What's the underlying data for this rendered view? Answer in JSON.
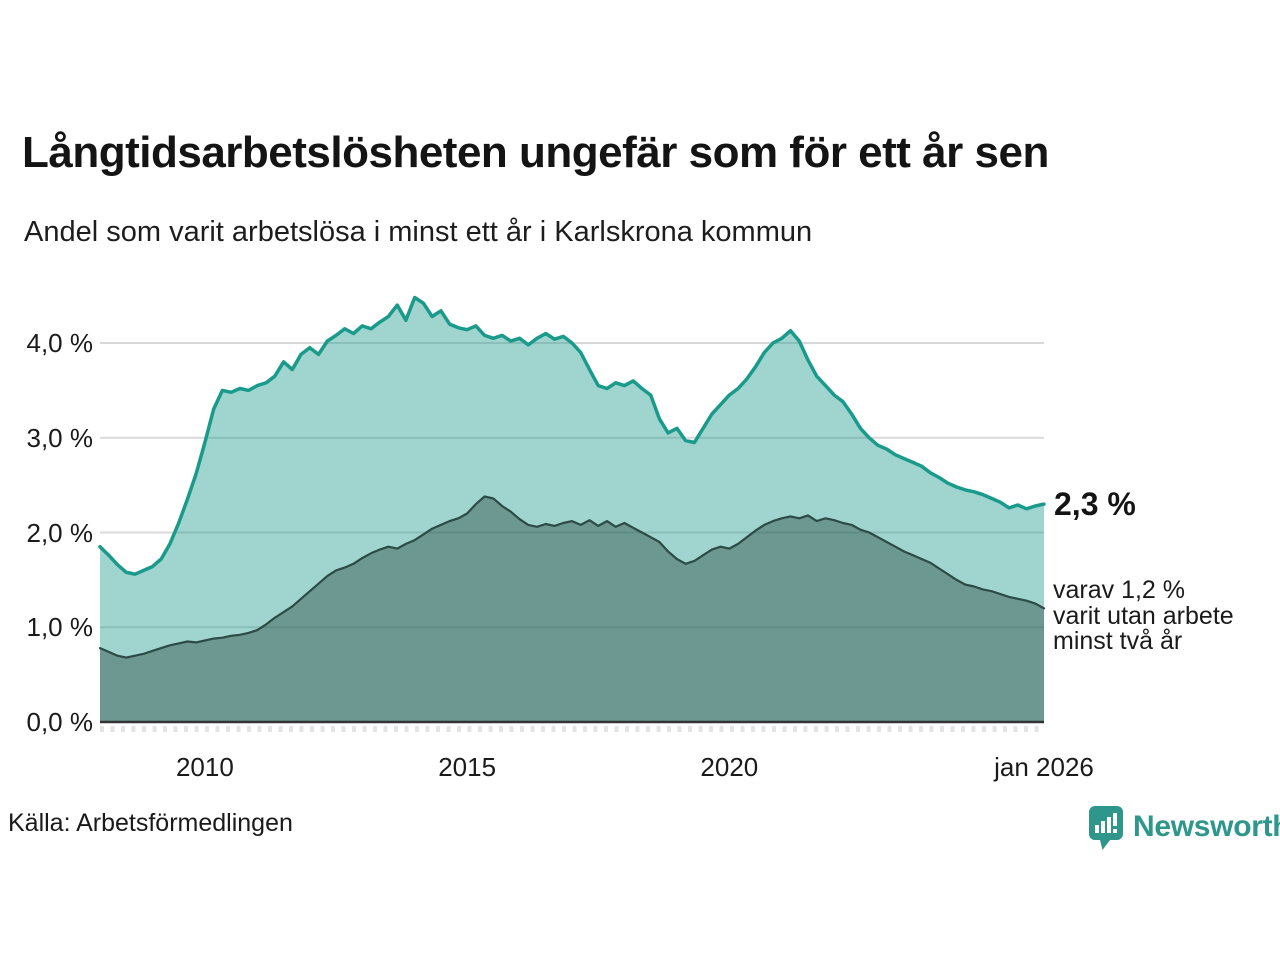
{
  "header": {
    "title": "Långtidsarbetslösheten ungefär som för ett år sen",
    "subtitle": "Andel som varit arbetslösa i minst ett år i Karlskrona kommun"
  },
  "chart_data": {
    "type": "area",
    "title": "Långtidsarbetslösheten ungefär som för ett år sen",
    "subtitle": "Andel som varit arbetslösa i minst ett år i Karlskrona kommun",
    "x_start_year": 2008.0,
    "x_end_year": 2026.0,
    "x_step_years": 0.16667,
    "ylim": [
      0,
      4.5
    ],
    "grid": true,
    "y_axis": {
      "tick_values": [
        0,
        1,
        2,
        3,
        4
      ],
      "tick_labels": [
        "0,0 %",
        "1,0 %",
        "2,0 %",
        "3,0 %",
        "4,0 %"
      ]
    },
    "x_axis": {
      "ticks": [
        {
          "label": "2010",
          "t": 2010
        },
        {
          "label": "2015",
          "t": 2015
        },
        {
          "label": "2020",
          "t": 2020
        },
        {
          "label": "jan 2026",
          "t": 2026
        }
      ]
    },
    "series": [
      {
        "name": "Andel som varit arbetslösa i minst ett år",
        "line_color": "#1a9a8a",
        "fill_color": "rgba(26,154,138,0.42)",
        "line_width": 3.5,
        "end_value": 2.3,
        "values": [
          1.85,
          1.76,
          1.66,
          1.58,
          1.56,
          1.6,
          1.64,
          1.72,
          1.88,
          2.1,
          2.35,
          2.62,
          2.95,
          3.3,
          3.5,
          3.48,
          3.52,
          3.5,
          3.55,
          3.58,
          3.65,
          3.8,
          3.72,
          3.88,
          3.95,
          3.88,
          4.02,
          4.08,
          4.15,
          4.1,
          4.18,
          4.15,
          4.22,
          4.28,
          4.4,
          4.24,
          4.48,
          4.42,
          4.28,
          4.34,
          4.2,
          4.16,
          4.14,
          4.18,
          4.08,
          4.05,
          4.08,
          4.02,
          4.05,
          3.98,
          4.05,
          4.1,
          4.04,
          4.07,
          4.0,
          3.9,
          3.72,
          3.55,
          3.52,
          3.58,
          3.55,
          3.6,
          3.52,
          3.45,
          3.2,
          3.05,
          3.1,
          2.97,
          2.95,
          3.1,
          3.25,
          3.35,
          3.45,
          3.52,
          3.62,
          3.75,
          3.9,
          4.0,
          4.05,
          4.13,
          4.02,
          3.82,
          3.65,
          3.55,
          3.45,
          3.38,
          3.25,
          3.1,
          3.0,
          2.92,
          2.88,
          2.82,
          2.78,
          2.74,
          2.7,
          2.63,
          2.58,
          2.52,
          2.48,
          2.45,
          2.43,
          2.4,
          2.36,
          2.32,
          2.26,
          2.29,
          2.25,
          2.28,
          2.3
        ]
      },
      {
        "name": "varav utan arbete minst två år",
        "line_color": "#2d4b46",
        "fill_color": "rgba(45,75,70,0.44)",
        "line_width": 2.2,
        "end_value": 1.2,
        "values": [
          0.78,
          0.74,
          0.7,
          0.68,
          0.7,
          0.72,
          0.75,
          0.78,
          0.81,
          0.83,
          0.85,
          0.84,
          0.86,
          0.88,
          0.89,
          0.91,
          0.92,
          0.94,
          0.97,
          1.03,
          1.1,
          1.16,
          1.22,
          1.3,
          1.38,
          1.46,
          1.54,
          1.6,
          1.63,
          1.67,
          1.73,
          1.78,
          1.82,
          1.85,
          1.83,
          1.88,
          1.92,
          1.98,
          2.04,
          2.08,
          2.12,
          2.15,
          2.2,
          2.3,
          2.38,
          2.36,
          2.28,
          2.22,
          2.14,
          2.08,
          2.06,
          2.09,
          2.07,
          2.1,
          2.12,
          2.08,
          2.13,
          2.07,
          2.12,
          2.06,
          2.1,
          2.05,
          2.0,
          1.95,
          1.9,
          1.8,
          1.72,
          1.67,
          1.7,
          1.76,
          1.82,
          1.85,
          1.83,
          1.88,
          1.95,
          2.02,
          2.08,
          2.12,
          2.15,
          2.17,
          2.15,
          2.18,
          2.12,
          2.15,
          2.13,
          2.1,
          2.08,
          2.03,
          2.0,
          1.95,
          1.9,
          1.85,
          1.8,
          1.76,
          1.72,
          1.68,
          1.62,
          1.56,
          1.5,
          1.45,
          1.43,
          1.4,
          1.38,
          1.35,
          1.32,
          1.3,
          1.28,
          1.25,
          1.2
        ]
      }
    ],
    "annotations": {
      "end_value_label": "2,3 %",
      "note_lines": [
        "varav 1,2 %",
        "varit utan arbete",
        "minst två år"
      ]
    },
    "legend_position": "none"
  },
  "footer": {
    "source": "Källa: Arbetsförmedlingen",
    "logo_text": "Newsworthy"
  },
  "colors": {
    "accent_teal": "#1a9a8a",
    "light_fill": "#a3d4cd",
    "dark_fill": "#6f9d97",
    "dark_line": "#2d4b46",
    "logo_teal": "#2e968b",
    "gridline": "#d9d9d9",
    "axis_line": "#333333",
    "text": "#1a1a1a"
  }
}
